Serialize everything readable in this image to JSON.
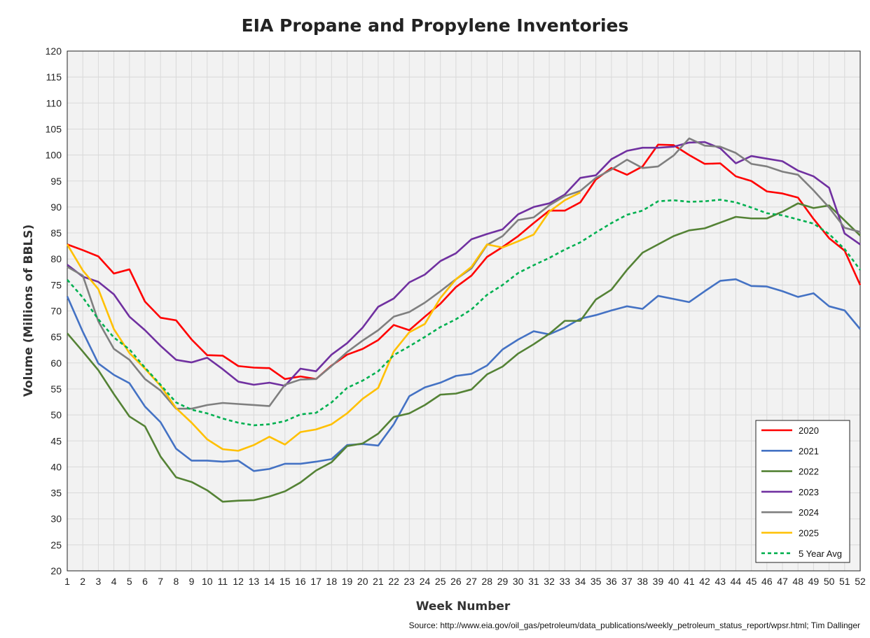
{
  "chart_data": {
    "type": "line",
    "title": "EIA Propane and Propylene Inventories",
    "xlabel": "Week Number",
    "ylabel": "Volume (Millions of BBLS)",
    "source": "Source: http://www.eia.gov/oil_gas/petroleum/data_publications/weekly_petroleum_status_report/wpsr.html; Tim Dallinger",
    "xlim": [
      1,
      52
    ],
    "ylim": [
      20,
      120
    ],
    "ystep": 5,
    "grid": true,
    "legend_position": "bottom-right",
    "series": [
      {
        "name": "2020",
        "color": "#ff0000",
        "dashed": false,
        "values": [
          82.8,
          81.7,
          80.5,
          77.2,
          78,
          71.8,
          68.7,
          68.2,
          64.5,
          61.5,
          61.4,
          59.4,
          59.1,
          59,
          56.9,
          57.4,
          56.9,
          59.5,
          61.6,
          62.7,
          64.4,
          67.3,
          66.3,
          68.9,
          71.4,
          74.6,
          76.8,
          80.4,
          82.3,
          84.4,
          86.9,
          89.3,
          89.3,
          90.9,
          95.3,
          97.5,
          96.2,
          97.8,
          102,
          101.9,
          100,
          98.3,
          98.4,
          95.9,
          95,
          93,
          92.6,
          91.8,
          87.7,
          84,
          81.6,
          75
        ]
      },
      {
        "name": "2021",
        "color": "#4472c4",
        "dashed": false,
        "values": [
          72.8,
          66,
          59.9,
          57.7,
          56.1,
          51.6,
          48.6,
          43.5,
          41.2,
          41.2,
          41,
          41.2,
          39.2,
          39.6,
          40.6,
          40.6,
          41,
          41.5,
          44.2,
          44.4,
          44.1,
          48.2,
          53.6,
          55.3,
          56.2,
          57.5,
          57.9,
          59.5,
          62.6,
          64.5,
          66.1,
          65.5,
          66.8,
          68.5,
          69.2,
          70.1,
          70.9,
          70.4,
          72.9,
          72.3,
          71.7,
          73.8,
          75.8,
          76.1,
          74.8,
          74.7,
          73.8,
          72.7,
          73.4,
          70.9,
          70.1,
          66.5
        ]
      },
      {
        "name": "2022",
        "color": "#548235",
        "dashed": false,
        "values": [
          65.7,
          62.2,
          58.6,
          54,
          49.7,
          47.8,
          42,
          38,
          37.1,
          35.5,
          33.3,
          33.5,
          33.6,
          34.3,
          35.3,
          37,
          39.3,
          40.9,
          44,
          44.5,
          46.4,
          49.6,
          50.3,
          51.9,
          53.9,
          54.1,
          54.9,
          57.8,
          59.3,
          61.8,
          63.6,
          65.6,
          68.1,
          68.1,
          72.2,
          74.1,
          77.9,
          81.2,
          82.8,
          84.4,
          85.5,
          85.9,
          87,
          88.1,
          87.8,
          87.8,
          89.1,
          90.7,
          89.8,
          90.3,
          87.4,
          84.5
        ]
      },
      {
        "name": "2023",
        "color": "#7030a0",
        "dashed": false,
        "values": [
          78.9,
          76.6,
          75.6,
          73.2,
          68.9,
          66.3,
          63.3,
          60.6,
          60.1,
          61,
          58.8,
          56.4,
          55.8,
          56.2,
          55.6,
          58.9,
          58.4,
          61.6,
          63.8,
          66.8,
          70.8,
          72.4,
          75.5,
          77,
          79.6,
          81.1,
          83.8,
          84.8,
          85.7,
          88.6,
          90,
          90.7,
          92.4,
          95.6,
          96.1,
          99.2,
          100.8,
          101.4,
          101.4,
          101.6,
          102.4,
          102.5,
          101.3,
          98.4,
          99.8,
          99.3,
          98.8,
          97,
          95.9,
          93.7,
          84.9,
          82.8
        ]
      },
      {
        "name": "2024",
        "color": "#7f7f7f",
        "dashed": false,
        "values": [
          78.5,
          76.8,
          68,
          62.7,
          60.6,
          56.9,
          54.7,
          51.2,
          51.2,
          51.9,
          52.3,
          52.1,
          51.9,
          51.7,
          55.8,
          56.8,
          56.9,
          59.4,
          62.1,
          64.3,
          66.3,
          68.9,
          69.8,
          71.6,
          73.8,
          76.1,
          78.2,
          82.7,
          84.4,
          87.5,
          88,
          90.3,
          92.1,
          93.1,
          95.6,
          97.2,
          99.1,
          97.5,
          97.8,
          99.9,
          103.2,
          101.8,
          101.6,
          100.4,
          98.3,
          97.8,
          96.8,
          96.2,
          93.2,
          89.9,
          86,
          85.2
        ]
      },
      {
        "name": "2025",
        "color": "#ffc000",
        "dashed": false,
        "values": [
          82.8,
          77.8,
          74.2,
          66.5,
          61.9,
          58.9,
          55.6,
          51.3,
          48.5,
          45.3,
          43.4,
          43.1,
          44.2,
          45.8,
          44.3,
          46.7,
          47.2,
          48.2,
          50.3,
          53.1,
          55.2,
          62.2,
          65.9,
          67.5,
          72.5,
          76.1,
          78.5,
          82.8,
          82.2,
          83.4,
          84.7,
          89.1,
          91.3,
          92.8
        ]
      },
      {
        "name": "5 Year Avg",
        "color": "#00b050",
        "dashed": true,
        "values": [
          76,
          72.6,
          68.4,
          64.9,
          62.6,
          59.1,
          55.8,
          52.4,
          51,
          50.3,
          49.3,
          48.5,
          48,
          48.2,
          48.8,
          50.1,
          50.4,
          52.4,
          55.2,
          56.6,
          58.4,
          61.5,
          63.2,
          65,
          66.9,
          68.4,
          70.3,
          73.1,
          75,
          77.3,
          78.8,
          80.2,
          81.8,
          83.2,
          85.1,
          86.9,
          88.5,
          89.3,
          91.1,
          91.3,
          91,
          91.1,
          91.4,
          90.9,
          89.9,
          88.8,
          88.4,
          87.6,
          86.8,
          84.8,
          81.9,
          77.9
        ]
      }
    ]
  }
}
